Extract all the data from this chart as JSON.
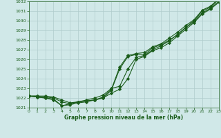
{
  "title": "Graphe pression niveau de la mer (hPa)",
  "bg_color": "#d0e8e8",
  "line_color": "#1a5c1a",
  "grid_color": "#b0cccc",
  "xlim": [
    0,
    23
  ],
  "ylim": [
    1021.0,
    1032.0
  ],
  "yticks": [
    1021,
    1022,
    1023,
    1024,
    1025,
    1026,
    1027,
    1028,
    1029,
    1030,
    1031,
    1032
  ],
  "xticks": [
    0,
    1,
    2,
    3,
    4,
    5,
    6,
    7,
    8,
    9,
    10,
    11,
    12,
    13,
    14,
    15,
    16,
    17,
    18,
    19,
    20,
    21,
    22,
    23
  ],
  "series": [
    [
      1022.2,
      1022.2,
      1022.2,
      1022.1,
      1021.8,
      1021.5,
      1021.6,
      1021.7,
      1021.8,
      1022.0,
      1022.8,
      1025.0,
      1026.3,
      1026.5,
      1026.5,
      1027.2,
      1027.5,
      1028.0,
      1028.5,
      1029.3,
      1030.0,
      1031.0,
      1031.4,
      1032.2
    ],
    [
      1022.2,
      1022.2,
      1022.1,
      1022.0,
      1021.6,
      1021.4,
      1021.6,
      1021.7,
      1021.8,
      1022.1,
      1022.9,
      1025.2,
      1026.4,
      1026.6,
      1026.7,
      1027.3,
      1027.6,
      1028.2,
      1028.8,
      1029.5,
      1030.1,
      1031.1,
      1031.5,
      1032.3
    ],
    [
      1022.2,
      1022.1,
      1022.0,
      1021.9,
      1021.2,
      1021.4,
      1021.6,
      1021.8,
      1022.0,
      1022.3,
      1023.0,
      1023.2,
      1025.0,
      1026.2,
      1026.4,
      1027.0,
      1027.4,
      1027.9,
      1028.6,
      1029.3,
      1029.9,
      1030.8,
      1031.3,
      1032.0
    ],
    [
      1022.2,
      1022.1,
      1022.0,
      1021.8,
      1021.2,
      1021.3,
      1021.5,
      1021.6,
      1021.8,
      1022.0,
      1022.5,
      1022.9,
      1024.0,
      1026.0,
      1026.3,
      1026.9,
      1027.2,
      1027.7,
      1028.4,
      1029.1,
      1029.8,
      1030.7,
      1031.2,
      1031.9
    ]
  ]
}
